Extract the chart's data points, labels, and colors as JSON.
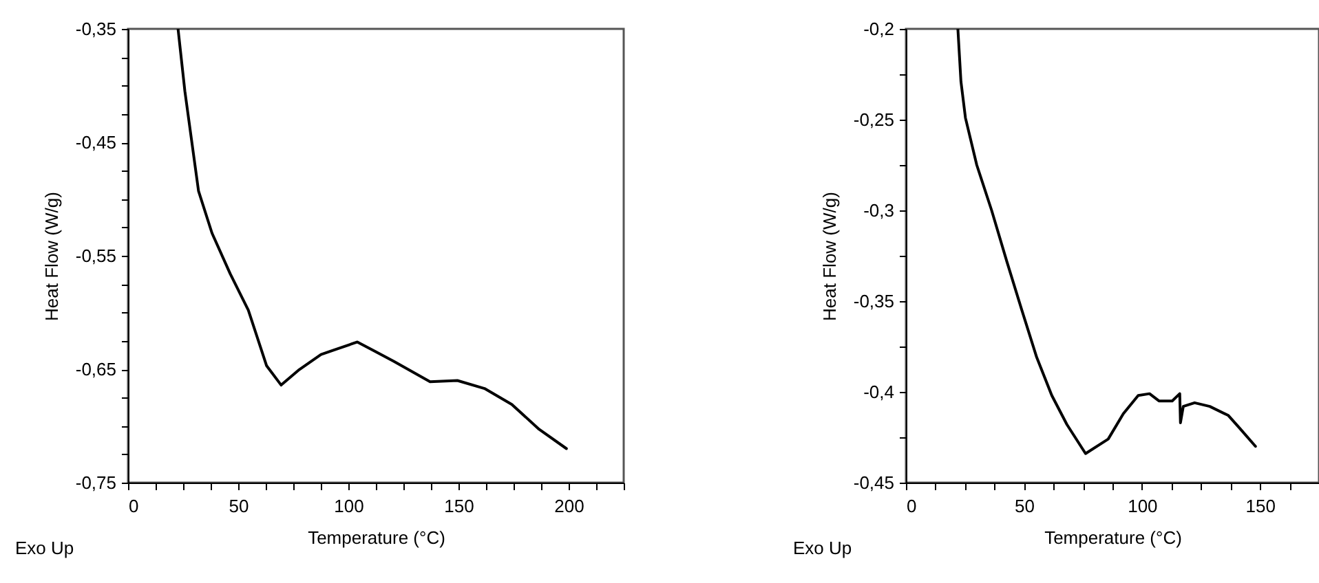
{
  "chart_data": [
    {
      "type": "line",
      "xlabel": "Temperature (°C)",
      "ylabel": "Heat Flow (W/g)",
      "annotations": [
        "Exo Up"
      ],
      "x": [
        22.7,
        25.8,
        32,
        38.1,
        46.4,
        54.6,
        62.9,
        69.5,
        77.3,
        87.6,
        104.1,
        120.6,
        137.1,
        149.5,
        161.8,
        174.2,
        186.6,
        199
      ],
      "series": [
        {
          "color": "#000000",
          "values": [
            -0.35,
            -0.405,
            -0.493,
            -0.53,
            -0.566,
            -0.598,
            -0.647,
            -0.664,
            -0.651,
            -0.637,
            -0.626,
            -0.643,
            -0.661,
            -0.66,
            -0.667,
            -0.681,
            -0.703,
            -0.72
          ]
        }
      ],
      "xlim": [
        0,
        225
      ],
      "xticks": [
        0,
        {
          "value": 12.5,
          "label": null
        },
        {
          "value": 25,
          "label": null
        },
        {
          "value": 37.5,
          "label": null
        },
        50,
        {
          "value": 62.5,
          "label": null
        },
        {
          "value": 75,
          "label": null
        },
        {
          "value": 87.5,
          "label": null
        },
        100,
        {
          "value": 112.5,
          "label": null
        },
        {
          "value": 125,
          "label": null
        },
        {
          "value": 137.5,
          "label": null
        },
        150,
        {
          "value": 162.5,
          "label": null
        },
        {
          "value": 175,
          "label": null
        },
        {
          "value": 187.5,
          "label": null
        },
        200,
        {
          "value": 212.5,
          "label": null
        },
        {
          "value": 225,
          "label": null
        }
      ],
      "ylim": [
        -0.75,
        -0.35
      ],
      "yticks": [
        {
          "value": -0.75,
          "label": "-0,75"
        },
        {
          "value": -0.725,
          "label": null
        },
        {
          "value": -0.7,
          "label": null
        },
        {
          "value": -0.675,
          "label": null
        },
        {
          "value": -0.65,
          "label": "-0,65"
        },
        {
          "value": -0.625,
          "label": null
        },
        {
          "value": -0.6,
          "label": null
        },
        {
          "value": -0.575,
          "label": null
        },
        {
          "value": -0.55,
          "label": "-0,55"
        },
        {
          "value": -0.525,
          "label": null
        },
        {
          "value": -0.5,
          "label": null
        },
        {
          "value": -0.475,
          "label": null
        },
        {
          "value": -0.45,
          "label": "-0,45"
        },
        {
          "value": -0.425,
          "label": null
        },
        {
          "value": -0.4,
          "label": null
        },
        {
          "value": -0.375,
          "label": null
        },
        {
          "value": -0.35,
          "label": "-0,35"
        }
      ],
      "grid": false
    },
    {
      "type": "line",
      "xlabel": "Temperature (°C)",
      "ylabel": "Heat Flow (W/g)",
      "annotations": [
        "Exo Up"
      ],
      "x": [
        22.0,
        23.3,
        25.2,
        30.0,
        36.3,
        42.7,
        49.1,
        55.4,
        61.8,
        68.2,
        76.1,
        85.7,
        92.1,
        98.4,
        103.2,
        107.2,
        112.8,
        116.0,
        116.3,
        117.5,
        122.3,
        128.7,
        136.6,
        141.4,
        148.1
      ],
      "series": [
        {
          "color": "#000000",
          "values": [
            -0.2,
            -0.229,
            -0.249,
            -0.275,
            -0.3,
            -0.328,
            -0.355,
            -0.381,
            -0.402,
            -0.418,
            -0.434,
            -0.426,
            -0.412,
            -0.402,
            -0.401,
            -0.405,
            -0.405,
            -0.401,
            -0.417,
            -0.408,
            -0.406,
            -0.408,
            -0.413,
            -0.42,
            -0.43
          ]
        }
      ],
      "xlim": [
        0,
        175
      ],
      "xticks": [
        0,
        {
          "value": 12.5,
          "label": null
        },
        {
          "value": 25,
          "label": null
        },
        {
          "value": 37.5,
          "label": null
        },
        50,
        {
          "value": 62.5,
          "label": null
        },
        {
          "value": 75,
          "label": null
        },
        {
          "value": 87.5,
          "label": null
        },
        100,
        {
          "value": 112.5,
          "label": null
        },
        {
          "value": 125,
          "label": null
        },
        {
          "value": 137.5,
          "label": null
        },
        150,
        {
          "value": 162.5,
          "label": null
        },
        {
          "value": 175,
          "label": null
        }
      ],
      "ylim": [
        -0.45,
        -0.2
      ],
      "yticks": [
        {
          "value": -0.45,
          "label": "-0,45"
        },
        {
          "value": -0.425,
          "label": null
        },
        {
          "value": -0.4,
          "label": "-0,4"
        },
        {
          "value": -0.375,
          "label": null
        },
        {
          "value": -0.35,
          "label": "-0,35"
        },
        {
          "value": -0.325,
          "label": null
        },
        {
          "value": -0.3,
          "label": "-0,3"
        },
        {
          "value": -0.275,
          "label": null
        },
        {
          "value": -0.25,
          "label": "-0,25"
        },
        {
          "value": -0.225,
          "label": null
        },
        {
          "value": -0.2,
          "label": "-0,2"
        }
      ],
      "grid": false
    }
  ]
}
